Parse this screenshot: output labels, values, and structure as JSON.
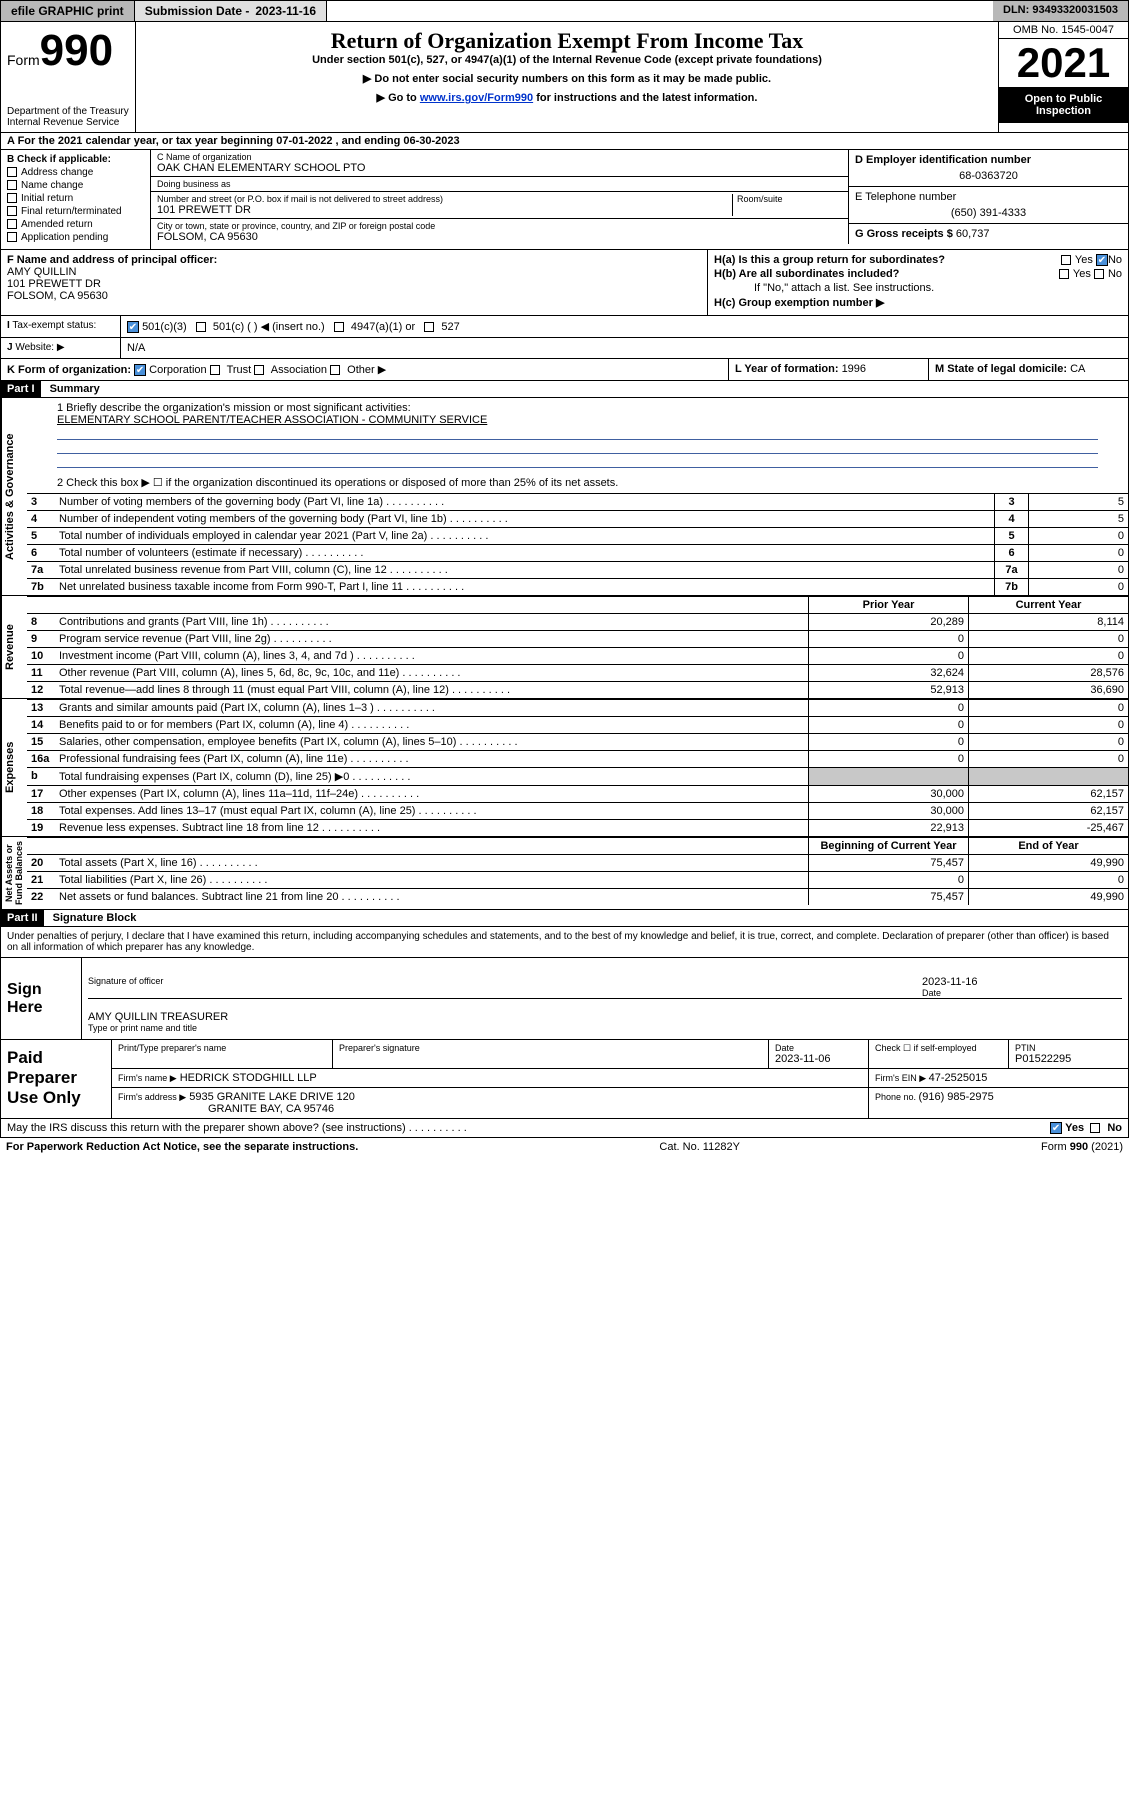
{
  "toolbar": {
    "efile": "efile GRAPHIC print",
    "subdate_label": "Submission Date - ",
    "subdate": "2023-11-16",
    "dln_label": "DLN: ",
    "dln": "93493320031503"
  },
  "hdr": {
    "form_prefix": "Form",
    "form_num": "990",
    "dept": "Department of the Treasury\nInternal Revenue Service",
    "title": "Return of Organization Exempt From Income Tax",
    "sub1": "Under section 501(c), 527, or 4947(a)(1) of the Internal Revenue Code (except private foundations)",
    "sub2": "▶ Do not enter social security numbers on this form as it may be made public.",
    "sub3_pre": "▶ Go to ",
    "sub3_link": "www.irs.gov/Form990",
    "sub3_post": " for instructions and the latest information.",
    "omb": "OMB No. 1545-0047",
    "year": "2021",
    "openpub1": "Open to Public",
    "openpub2": "Inspection"
  },
  "A": {
    "label": "A For the 2021 calendar year, or tax year beginning ",
    "begin": "07-01-2022",
    "mid": " , and ending ",
    "end": "06-30-2023"
  },
  "B": {
    "label": "B Check if applicable:",
    "addr": "Address change",
    "name": "Name change",
    "initial": "Initial return",
    "final": "Final return/terminated",
    "amended": "Amended return",
    "app_pending": "Application pending"
  },
  "C": {
    "name_lbl": "C Name of organization",
    "name": "OAK CHAN ELEMENTARY SCHOOL PTO",
    "dba_lbl": "Doing business as",
    "dba": "",
    "street_lbl": "Number and street (or P.O. box if mail is not delivered to street address)",
    "room_lbl": "Room/suite",
    "street": "101 PREWETT DR",
    "city_lbl": "City or town, state or province, country, and ZIP or foreign postal code",
    "city": "FOLSOM, CA  95630"
  },
  "D": {
    "lbl": "D Employer identification number",
    "val": "68-0363720"
  },
  "E": {
    "lbl": "E Telephone number",
    "val": "(650) 391-4333"
  },
  "G": {
    "lbl": "G Gross receipts $ ",
    "val": "60,737"
  },
  "F": {
    "lbl": "F Name and address of principal officer:",
    "name": "AMY QUILLIN",
    "addr1": "101 PREWETT DR",
    "addr2": "FOLSOM, CA  95630"
  },
  "H": {
    "a": "H(a)  Is this a group return for subordinates?",
    "a_yes": "Yes",
    "a_no": "No",
    "a_checked": "no",
    "b": "H(b)  Are all subordinates included?",
    "b_yes": "Yes",
    "b_no": "No",
    "b_note": "If \"No,\" attach a list. See instructions.",
    "c": "H(c)  Group exemption number ▶"
  },
  "I": {
    "lbl": "Tax-exempt status:",
    "c3": "501(c)(3)",
    "c": "501(c) (   ) ◀ (insert no.)",
    "a1": "4947(a)(1) or",
    "s527": "527"
  },
  "J": {
    "lbl": "Website: ▶",
    "val": "N/A"
  },
  "K": {
    "lbl": "K Form of organization:",
    "corp": "Corporation",
    "trust": "Trust",
    "assoc": "Association",
    "other": "Other ▶"
  },
  "L": {
    "lbl": "L Year of formation: ",
    "val": "1996"
  },
  "M": {
    "lbl": "M State of legal domicile: ",
    "val": "CA"
  },
  "part1": {
    "hdr": "Part I",
    "title": "Summary"
  },
  "sec_labels": {
    "gov": "Activities & Governance",
    "rev": "Revenue",
    "exp": "Expenses",
    "net": "Net Assets or\nFund Balances"
  },
  "mission": {
    "q": "1  Briefly describe the organization's mission or most significant activities:",
    "text": "ELEMENTARY SCHOOL PARENT/TEACHER ASSOCIATION - COMMUNITY SERVICE"
  },
  "line2": "2  Check this box ▶ ☐  if the organization discontinued its operations or disposed of more than 25% of its net assets.",
  "lines_single": [
    {
      "n": "3",
      "t": "Number of voting members of the governing body (Part VI, line 1a)",
      "v": "5"
    },
    {
      "n": "4",
      "t": "Number of independent voting members of the governing body (Part VI, line 1b)",
      "v": "5"
    },
    {
      "n": "5",
      "t": "Total number of individuals employed in calendar year 2021 (Part V, line 2a)",
      "v": "0"
    },
    {
      "n": "6",
      "t": "Total number of volunteers (estimate if necessary)",
      "v": "0"
    },
    {
      "n": "7a",
      "t": "Total unrelated business revenue from Part VIII, column (C), line 12",
      "v": "0"
    },
    {
      "n": "7b",
      "t": "Net unrelated business taxable income from Form 990-T, Part I, line 11",
      "v": "0"
    }
  ],
  "pc_hdr": {
    "prior": "Prior Year",
    "current": "Current Year",
    "begin": "Beginning of Current Year",
    "end": "End of Year"
  },
  "rev_lines": [
    {
      "n": "8",
      "t": "Contributions and grants (Part VIII, line 1h)",
      "p": "20,289",
      "c": "8,114"
    },
    {
      "n": "9",
      "t": "Program service revenue (Part VIII, line 2g)",
      "p": "0",
      "c": "0"
    },
    {
      "n": "10",
      "t": "Investment income (Part VIII, column (A), lines 3, 4, and 7d )",
      "p": "0",
      "c": "0"
    },
    {
      "n": "11",
      "t": "Other revenue (Part VIII, column (A), lines 5, 6d, 8c, 9c, 10c, and 11e)",
      "p": "32,624",
      "c": "28,576"
    },
    {
      "n": "12",
      "t": "Total revenue—add lines 8 through 11 (must equal Part VIII, column (A), line 12)",
      "p": "52,913",
      "c": "36,690"
    }
  ],
  "exp_lines": [
    {
      "n": "13",
      "t": "Grants and similar amounts paid (Part IX, column (A), lines 1–3 )",
      "p": "0",
      "c": "0"
    },
    {
      "n": "14",
      "t": "Benefits paid to or for members (Part IX, column (A), line 4)",
      "p": "0",
      "c": "0"
    },
    {
      "n": "15",
      "t": "Salaries, other compensation, employee benefits (Part IX, column (A), lines 5–10)",
      "p": "0",
      "c": "0"
    },
    {
      "n": "16a",
      "t": "Professional fundraising fees (Part IX, column (A), line 11e)",
      "p": "0",
      "c": "0"
    },
    {
      "n": "b",
      "t": "Total fundraising expenses (Part IX, column (D), line 25) ▶0",
      "p": "",
      "c": "",
      "shaded": true
    },
    {
      "n": "17",
      "t": "Other expenses (Part IX, column (A), lines 11a–11d, 11f–24e)",
      "p": "30,000",
      "c": "62,157"
    },
    {
      "n": "18",
      "t": "Total expenses. Add lines 13–17 (must equal Part IX, column (A), line 25)",
      "p": "30,000",
      "c": "62,157"
    },
    {
      "n": "19",
      "t": "Revenue less expenses. Subtract line 18 from line 12",
      "p": "22,913",
      "c": "-25,467"
    }
  ],
  "net_lines": [
    {
      "n": "20",
      "t": "Total assets (Part X, line 16)",
      "p": "75,457",
      "c": "49,990"
    },
    {
      "n": "21",
      "t": "Total liabilities (Part X, line 26)",
      "p": "0",
      "c": "0"
    },
    {
      "n": "22",
      "t": "Net assets or fund balances. Subtract line 21 from line 20",
      "p": "75,457",
      "c": "49,990"
    }
  ],
  "part2": {
    "hdr": "Part II",
    "title": "Signature Block"
  },
  "decl": "Under penalties of perjury, I declare that I have examined this return, including accompanying schedules and statements, and to the best of my knowledge and belief, it is true, correct, and complete. Declaration of preparer (other than officer) is based on all information of which preparer has any knowledge.",
  "sign": {
    "here": "Sign Here",
    "sigoff": "Signature of officer",
    "date": "Date",
    "datev": "2023-11-16",
    "name": "AMY QUILLIN  TREASURER",
    "namelbl": "Type or print name and title"
  },
  "paid": {
    "lbl": "Paid Preparer Use Only",
    "h1": "Print/Type preparer's name",
    "h2": "Preparer's signature",
    "h3": "Date",
    "h3v": "2023-11-06",
    "h4": "Check ☐ if self-employed",
    "h5": "PTIN",
    "h5v": "P01522295",
    "firm_lbl": "Firm's name   ▶",
    "firm": "HEDRICK STODGHILL LLP",
    "ein_lbl": "Firm's EIN ▶ ",
    "ein": "47-2525015",
    "addr_lbl": "Firm's address ▶",
    "addr1": "5935 GRANITE LAKE DRIVE 120",
    "addr2": "GRANITE BAY, CA  95746",
    "phone_lbl": "Phone no. ",
    "phone": "(916) 985-2975"
  },
  "discuss": {
    "q": "May the IRS discuss this return with the preparer shown above? (see instructions)",
    "yes": "Yes",
    "no": "No"
  },
  "footer": {
    "left": "For Paperwork Reduction Act Notice, see the separate instructions.",
    "mid": "Cat. No. 11282Y",
    "right": "Form 990 (2021)"
  }
}
